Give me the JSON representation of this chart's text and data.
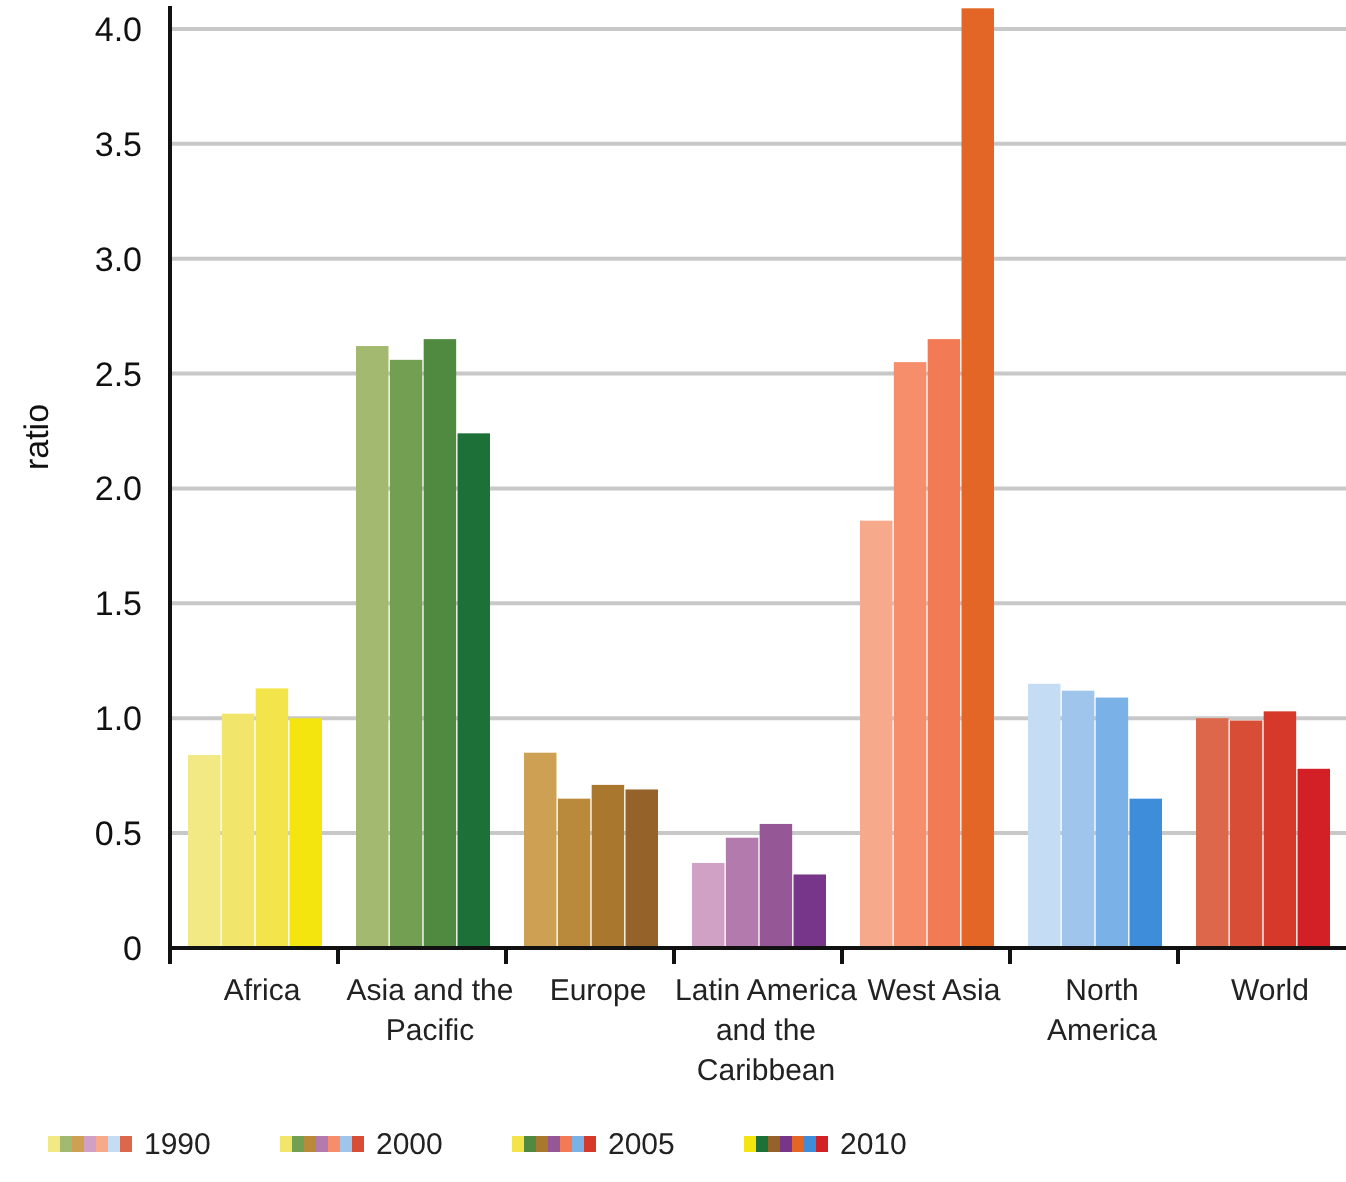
{
  "chart_data": {
    "type": "bar",
    "ylabel": "ratio",
    "categories": [
      "Africa",
      "Asia and the Pacific",
      "Europe",
      "Latin America and the Caribbean",
      "West Asia",
      "North America",
      "World"
    ],
    "series": [
      {
        "name": "1990",
        "colors": [
          "#f2e984",
          "#a3b96f",
          "#cda053",
          "#d1a1c5",
          "#f7a98c",
          "#c4ddf4",
          "#dc674a"
        ],
        "values": [
          0.84,
          2.62,
          0.85,
          0.37,
          1.86,
          1.15,
          1.0
        ]
      },
      {
        "name": "2000",
        "colors": [
          "#f2e56c",
          "#739f53",
          "#b98a3c",
          "#b37bad",
          "#f68e6c",
          "#a0c5ed",
          "#d84d35"
        ],
        "values": [
          1.02,
          2.56,
          0.65,
          0.48,
          2.55,
          1.12,
          0.99
        ]
      },
      {
        "name": "2005",
        "colors": [
          "#f2e44a",
          "#4f8a40",
          "#a9772e",
          "#955796",
          "#f27a55",
          "#7ab1e6",
          "#d6392a"
        ],
        "values": [
          1.13,
          2.65,
          0.71,
          0.54,
          2.65,
          1.09,
          1.03
        ]
      },
      {
        "name": "2010",
        "colors": [
          "#f5e50f",
          "#1e7039",
          "#95622a",
          "#78368a",
          "#e46627",
          "#3d8ddb",
          "#d31f26"
        ],
        "values": [
          1.0,
          2.24,
          0.69,
          0.32,
          4.09,
          0.65,
          0.78
        ]
      }
    ],
    "ylim": [
      0,
      4.1
    ],
    "yticks": [
      0,
      0.5,
      {
        "value": 1,
        "label": "1.0"
      },
      1.5,
      {
        "value": 2,
        "label": "2.0"
      },
      2.5,
      {
        "value": 3,
        "label": "3.0"
      },
      3.5,
      {
        "value": 4,
        "label": "4.0"
      }
    ],
    "grid": "y",
    "legend": "bottom"
  }
}
